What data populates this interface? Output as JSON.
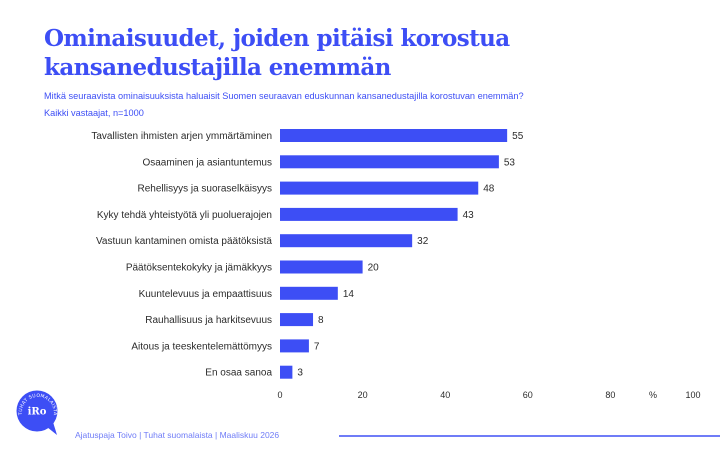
{
  "title": "Ominaisuudet, joiden pitäisi korostua kansanedustajilla enemmän",
  "subtitle": "Mitkä seuraavista ominaisuuksista haluaisit Suomen seuraavan eduskunnan kansanedustajilla korostuvan enemmän?",
  "sample": "Kaikki vastaajat, n=1000",
  "footer": "Ajatuspaja Toivo | Tuhat suomalaista | Maaliskuu 2026",
  "logo": {
    "center_text": "iRo",
    "ring_text": "TUHAT SUOMALAISTA"
  },
  "colors": {
    "accent": "#3d4ef5",
    "text": "#2b2b2b",
    "footer": "#6f7cf7"
  },
  "chart_data": {
    "type": "bar",
    "orientation": "horizontal",
    "categories": [
      "Tavallisten ihmisten arjen ymmärtäminen",
      "Osaaminen ja asiantuntemus",
      "Rehellisyys ja suoraselkäisyys",
      "Kyky tehdä yhteistyötä yli puoluerajojen",
      "Vastuun kantaminen omista päätöksistä",
      "Päätöksentekokyky ja jämäkkyys",
      "Kuuntelevuus ja empaattisuus",
      "Rauhallisuus ja harkitsevuus",
      "Aitous ja teeskentelemättömyys",
      "En osaa sanoa"
    ],
    "values": [
      55,
      53,
      48,
      43,
      32,
      20,
      14,
      8,
      7,
      3
    ],
    "xlim": [
      0,
      100
    ],
    "xticks": [
      "0",
      "20",
      "40",
      "60",
      "80",
      "100"
    ],
    "xtick_values": [
      0,
      20,
      40,
      60,
      80,
      100
    ],
    "unit_label": "%",
    "grid": false
  }
}
